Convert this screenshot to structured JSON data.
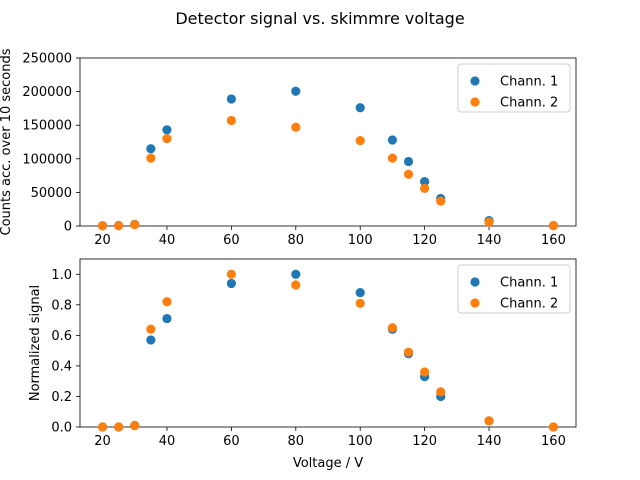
{
  "figure": {
    "title": "Detector signal vs. skimmre voltage"
  },
  "colors": {
    "chann1": "#1f77b4",
    "chann2": "#ff7f0e"
  },
  "chart_data": [
    {
      "type": "scatter",
      "xlabel": "",
      "ylabel": "Counts acc. over 10 seconds",
      "xlim": [
        13,
        167
      ],
      "ylim": [
        0,
        250000
      ],
      "xticks": [
        20,
        40,
        60,
        80,
        100,
        120,
        140,
        160
      ],
      "yticks": [
        0,
        50000,
        100000,
        150000,
        200000,
        250000
      ],
      "grid": false,
      "legend": "top-right",
      "series": [
        {
          "name": "Chann. 1",
          "x": [
            20,
            25,
            30,
            35,
            40,
            60,
            80,
            100,
            110,
            115,
            120,
            125,
            140,
            160
          ],
          "y": [
            500,
            700,
            2500,
            115000,
            143000,
            189000,
            200500,
            176000,
            128000,
            96000,
            66000,
            41000,
            8000,
            500
          ]
        },
        {
          "name": "Chann. 2",
          "x": [
            20,
            25,
            30,
            35,
            40,
            60,
            80,
            100,
            110,
            115,
            120,
            125,
            140,
            160
          ],
          "y": [
            300,
            500,
            2000,
            101000,
            130000,
            157000,
            147000,
            127000,
            101000,
            77000,
            56000,
            37000,
            6000,
            700
          ]
        }
      ]
    },
    {
      "type": "scatter",
      "xlabel": "Voltage / V",
      "ylabel": "Normalized signal",
      "xlim": [
        13,
        167
      ],
      "ylim": [
        0,
        1.1
      ],
      "xticks": [
        20,
        40,
        60,
        80,
        100,
        120,
        140,
        160
      ],
      "yticks": [
        0.0,
        0.2,
        0.4,
        0.6,
        0.8,
        1.0
      ],
      "grid": false,
      "legend": "top-right",
      "series": [
        {
          "name": "Chann. 1",
          "x": [
            20,
            25,
            30,
            35,
            40,
            60,
            80,
            100,
            110,
            115,
            120,
            125,
            140,
            160
          ],
          "y": [
            0.0,
            0.0,
            0.01,
            0.57,
            0.71,
            0.94,
            1.0,
            0.88,
            0.64,
            0.48,
            0.33,
            0.2,
            0.04,
            0.0
          ]
        },
        {
          "name": "Chann. 2",
          "x": [
            20,
            25,
            30,
            35,
            40,
            60,
            80,
            100,
            110,
            115,
            120,
            125,
            140,
            160
          ],
          "y": [
            0.0,
            0.0,
            0.01,
            0.64,
            0.82,
            1.0,
            0.93,
            0.81,
            0.65,
            0.49,
            0.36,
            0.23,
            0.04,
            0.0
          ]
        }
      ]
    }
  ]
}
